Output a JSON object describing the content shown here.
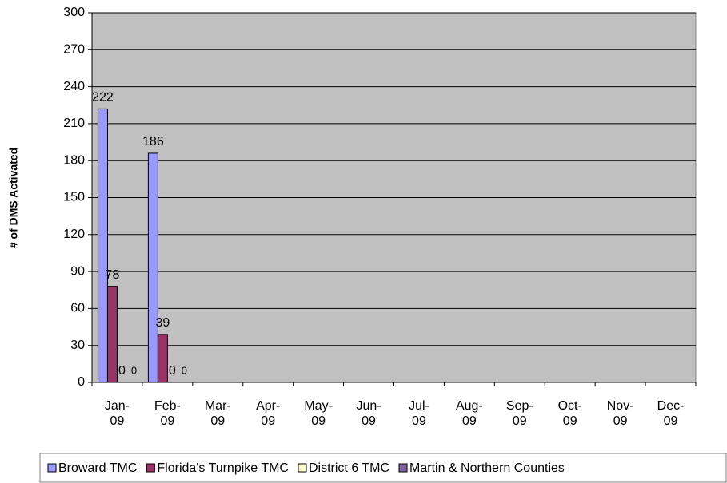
{
  "chart_data": {
    "type": "bar",
    "y_label": "# of DMS Activated",
    "categories": [
      "Jan-09",
      "Feb-09",
      "Mar-09",
      "Apr-09",
      "May-09",
      "Jun-09",
      "Jul-09",
      "Aug-09",
      "Sep-09",
      "Oct-09",
      "Nov-09",
      "Dec-09"
    ],
    "series": [
      {
        "name": "Broward TMC",
        "color": "#9999ff",
        "values": [
          222,
          186,
          null,
          null,
          null,
          null,
          null,
          null,
          null,
          null,
          null,
          null
        ]
      },
      {
        "name": "Florida's Turnpike TMC",
        "color": "#993366",
        "values": [
          78,
          39,
          null,
          null,
          null,
          null,
          null,
          null,
          null,
          null,
          null,
          null
        ]
      },
      {
        "name": "District 6 TMC",
        "color": "#ffffcc",
        "values": [
          0,
          0,
          null,
          null,
          null,
          null,
          null,
          null,
          null,
          null,
          null,
          null
        ]
      },
      {
        "name": "Martin & Northern Counties",
        "color": "#8064a2",
        "values": [
          0,
          0,
          null,
          null,
          null,
          null,
          null,
          null,
          null,
          null,
          null,
          null
        ]
      }
    ],
    "ylim": [
      0,
      300
    ],
    "yticks": [
      0,
      30,
      60,
      90,
      120,
      150,
      180,
      210,
      240,
      270,
      300
    ],
    "grid": true,
    "plot_background": "#c0c0c0",
    "legend": "bottom"
  }
}
